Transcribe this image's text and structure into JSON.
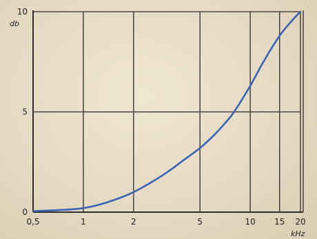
{
  "chart_data": {
    "type": "line",
    "title": "",
    "xlabel": "kHz",
    "ylabel": "db",
    "x_scale": "log",
    "xlim": [
      0.5,
      20
    ],
    "ylim": [
      0,
      10
    ],
    "grid": true,
    "x_ticks": [
      {
        "value": 0.5,
        "label": "0,5"
      },
      {
        "value": 1,
        "label": "1"
      },
      {
        "value": 2,
        "label": "2"
      },
      {
        "value": 5,
        "label": "5"
      },
      {
        "value": 10,
        "label": "10"
      },
      {
        "value": 15,
        "label": "15"
      },
      {
        "value": 20,
        "label": "20"
      }
    ],
    "y_ticks": [
      {
        "value": 0,
        "label": "0"
      },
      {
        "value": 5,
        "label": "5"
      },
      {
        "value": 10,
        "label": "10"
      }
    ],
    "series": [
      {
        "color": "#3a63b5",
        "x": [
          0.5,
          0.7,
          1,
          1.4,
          2,
          3,
          4,
          5,
          6,
          7,
          8,
          10,
          12,
          15,
          18,
          20
        ],
        "y": [
          0.05,
          0.1,
          0.2,
          0.5,
          1.0,
          1.85,
          2.6,
          3.2,
          3.8,
          4.4,
          5.0,
          6.3,
          7.5,
          8.8,
          9.6,
          10.0
        ]
      }
    ]
  }
}
